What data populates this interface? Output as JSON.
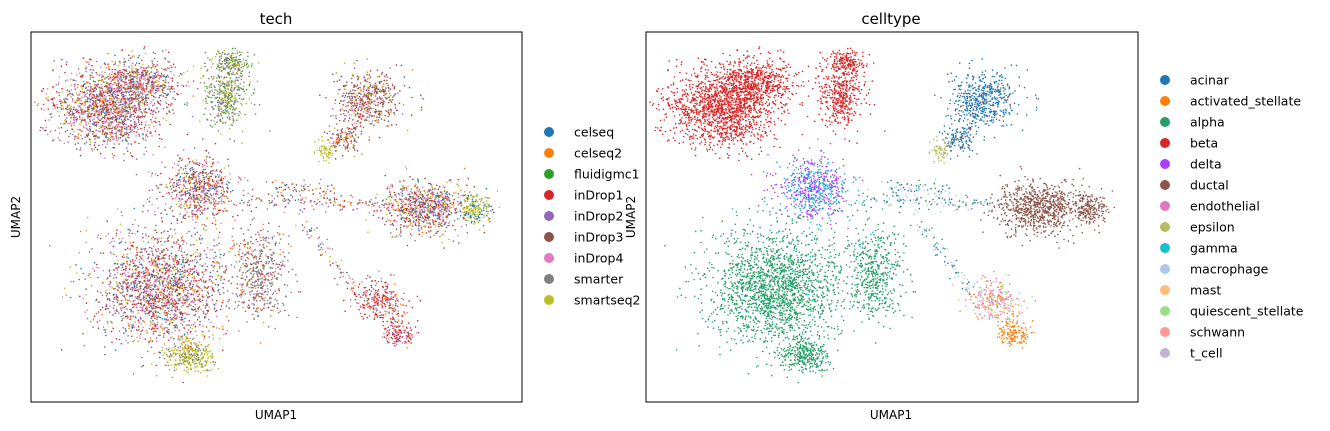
{
  "chart_data": [
    {
      "type": "scatter",
      "title": "tech",
      "xlabel": "UMAP1",
      "ylabel": "UMAP2",
      "grid": false,
      "ticks": "none",
      "legend_position": "right",
      "legend": [
        {
          "name": "celseq",
          "color": "#1f77b4"
        },
        {
          "name": "celseq2",
          "color": "#ff7f0e"
        },
        {
          "name": "fluidigmc1",
          "color": "#2ca02c"
        },
        {
          "name": "inDrop1",
          "color": "#d62728"
        },
        {
          "name": "inDrop2",
          "color": "#9467bd"
        },
        {
          "name": "inDrop3",
          "color": "#8c564b"
        },
        {
          "name": "inDrop4",
          "color": "#e377c2"
        },
        {
          "name": "smarter",
          "color": "#7f7f7f"
        },
        {
          "name": "smartseq2",
          "color": "#bcbd22"
        }
      ]
    },
    {
      "type": "scatter",
      "title": "celltype",
      "xlabel": "UMAP1",
      "ylabel": "UMAP2",
      "grid": false,
      "ticks": "none",
      "legend_position": "right",
      "legend": [
        {
          "name": "acinar",
          "color": "#1f77b4"
        },
        {
          "name": "activated_stellate",
          "color": "#ff7f0e"
        },
        {
          "name": "alpha",
          "color": "#279e68"
        },
        {
          "name": "beta",
          "color": "#d62728"
        },
        {
          "name": "delta",
          "color": "#aa40fc"
        },
        {
          "name": "ductal",
          "color": "#8c564b"
        },
        {
          "name": "endothelial",
          "color": "#e377c2"
        },
        {
          "name": "epsilon",
          "color": "#b5bd61"
        },
        {
          "name": "gamma",
          "color": "#17becf"
        },
        {
          "name": "macrophage",
          "color": "#aec7e8"
        },
        {
          "name": "mast",
          "color": "#ffbb78"
        },
        {
          "name": "quiescent_stellate",
          "color": "#98df8a"
        },
        {
          "name": "schwann",
          "color": "#ff9896"
        },
        {
          "name": "t_cell",
          "color": "#c5b0d5"
        }
      ]
    }
  ]
}
